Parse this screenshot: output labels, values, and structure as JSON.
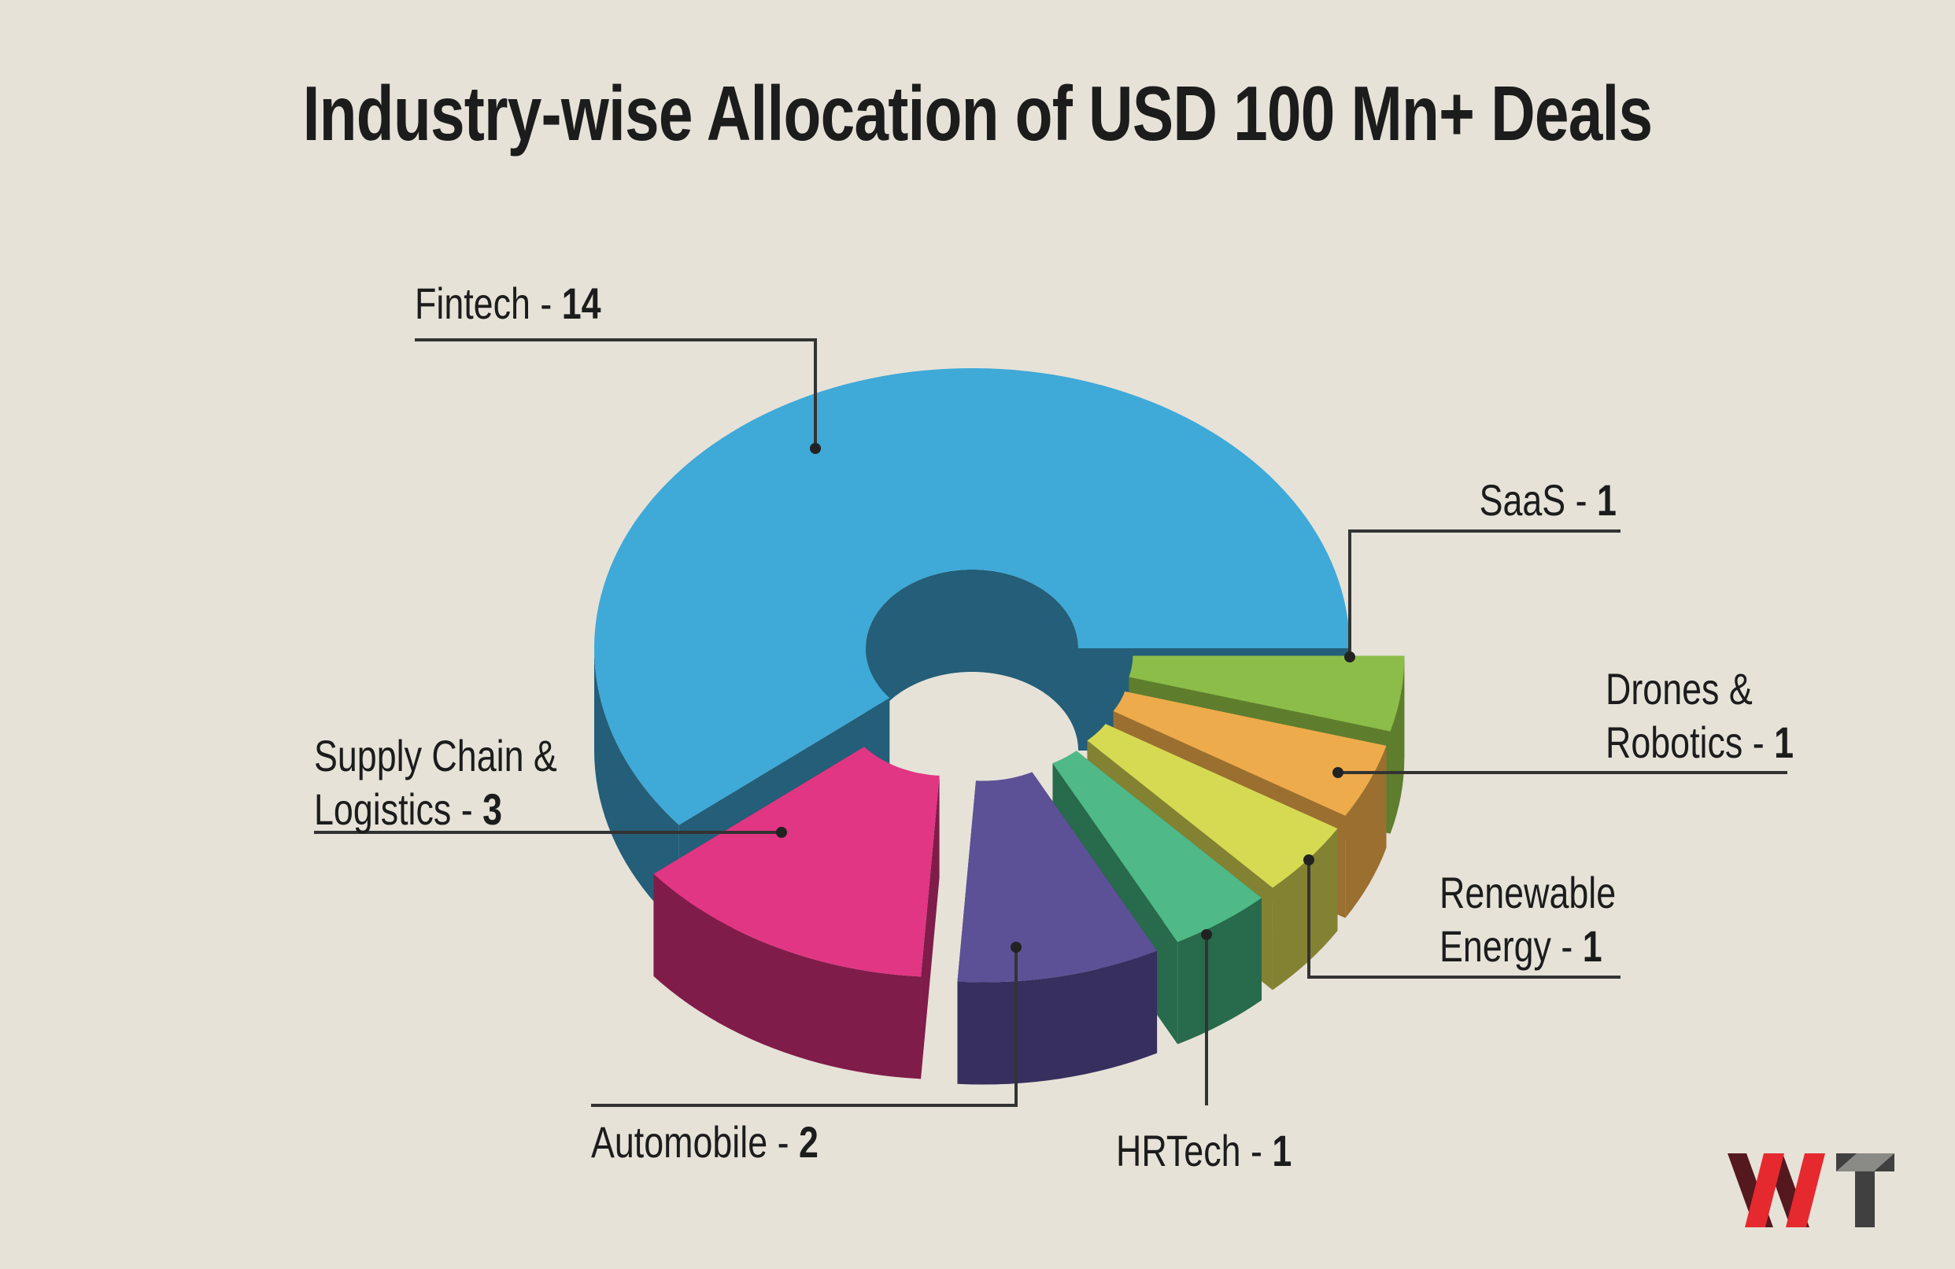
{
  "chart_data": {
    "type": "pie",
    "title": "Industry-wise Allocation of USD 100 Mn+ Deals",
    "style": "3d exploded donut",
    "sep": " - ",
    "slices": [
      {
        "label": "SaaS",
        "value": 1,
        "color": "#8cbd48",
        "side": "#5e7e2e"
      },
      {
        "label": "Drones & Robotics",
        "line1": "Drones &",
        "line2": "Robotics",
        "value": 1,
        "color": "#eeab4b",
        "side": "#9b6f30"
      },
      {
        "label": "Renewable Energy",
        "line1": "Renewable",
        "line2": "Energy",
        "value": 1,
        "color": "#d6da52",
        "side": "#838232"
      },
      {
        "label": "HRTech",
        "value": 1,
        "color": "#4fb987",
        "side": "#286a4c"
      },
      {
        "label": "Automobile",
        "value": 2,
        "color": "#5c5196",
        "side": "#372f5e"
      },
      {
        "label": "Supply Chain & Logistics",
        "line1": "Supply Chain &",
        "line2": "Logistics",
        "value": 3,
        "color": "#e13683",
        "side": "#801c4a"
      },
      {
        "label": "Fintech",
        "value": 14,
        "color": "#3fa9d7",
        "side": "#245e78"
      }
    ]
  },
  "colors": {
    "background": "#e6e2d8",
    "leader": "#333333"
  },
  "logo": {
    "text": "WT"
  }
}
